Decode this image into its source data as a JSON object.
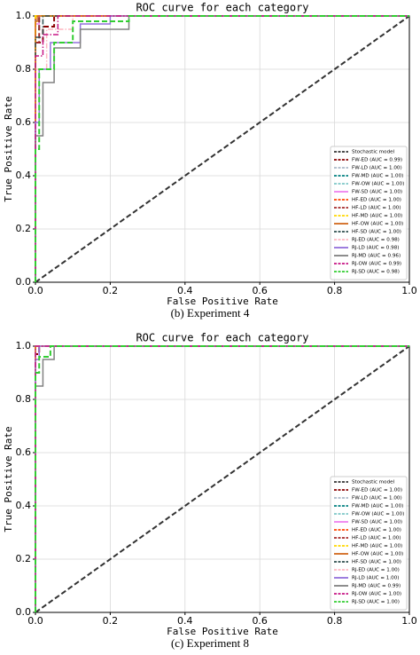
{
  "chart_data": [
    {
      "type": "line",
      "title": "ROC curve for each category",
      "xlabel": "False Positive Rate",
      "ylabel": "True Positive Rate",
      "caption": "(b) Experiment 4",
      "xlim": [
        0,
        1
      ],
      "ylim": [
        0,
        1
      ],
      "xticks": [
        {
          "value": 0,
          "label": "0.0"
        },
        0.2,
        0.4,
        0.6,
        0.8,
        {
          "value": 1,
          "label": "1.0"
        }
      ],
      "yticks": [
        {
          "value": 0,
          "label": "0.0"
        },
        0.2,
        0.4,
        0.6,
        0.8,
        {
          "value": 1,
          "label": "1.0"
        }
      ],
      "grid": true,
      "legend": "lower right",
      "series": [
        {
          "name": "Stochastic model",
          "color": "#333333",
          "dash": "dashed",
          "x": [
            0,
            1
          ],
          "values": [
            0,
            1
          ]
        },
        {
          "name": "FW-ED (AUC = 0.99)",
          "color": "#8b0000",
          "dash": "dashed",
          "x": [
            0,
            0,
            0.02,
            0.02,
            0.05,
            0.05,
            1
          ],
          "values": [
            0,
            0.9,
            0.9,
            0.96,
            0.96,
            1,
            1
          ]
        },
        {
          "name": "FW-LD (AUC = 1.00)",
          "color": "#a9b8c8",
          "dash": "dashdot",
          "x": [
            0,
            0,
            1
          ],
          "values": [
            0,
            1,
            1
          ]
        },
        {
          "name": "FW-MD (AUC = 1.00)",
          "color": "#008080",
          "dash": "dashed",
          "x": [
            0,
            0,
            0.01,
            0.01,
            1
          ],
          "values": [
            0,
            0.95,
            0.95,
            1,
            1
          ]
        },
        {
          "name": "FW-OW (AUC = 1.00)",
          "color": "#7fc8c8",
          "dash": "dashdot",
          "x": [
            0,
            0,
            1
          ],
          "values": [
            0,
            1,
            1
          ]
        },
        {
          "name": "FW-SD (AUC = 1.00)",
          "color": "#ee82ee",
          "dash": "solid",
          "x": [
            0,
            0,
            0.01,
            0.01,
            1
          ],
          "values": [
            0,
            0.97,
            0.97,
            1,
            1
          ]
        },
        {
          "name": "HF-ED (AUC = 1.00)",
          "color": "#ff4500",
          "dash": "dashdot",
          "x": [
            0,
            0,
            1
          ],
          "values": [
            0,
            1,
            1
          ]
        },
        {
          "name": "HF-LD (AUC = 1.00)",
          "color": "#a52a2a",
          "dash": "dashed",
          "x": [
            0,
            0,
            0.01,
            0.01,
            1
          ],
          "values": [
            0,
            0.9,
            0.9,
            1,
            1
          ]
        },
        {
          "name": "HF-MD (AUC = 1.00)",
          "color": "#ffd700",
          "dash": "dashed",
          "x": [
            0,
            0,
            1
          ],
          "values": [
            0,
            1,
            1
          ]
        },
        {
          "name": "HF-OW (AUC = 1.00)",
          "color": "#d2691e",
          "dash": "solid",
          "x": [
            0,
            0,
            0.005,
            0.005,
            1
          ],
          "values": [
            0,
            0.98,
            0.98,
            1,
            1
          ]
        },
        {
          "name": "HF-SD (AUC = 1.00)",
          "color": "#2f4f4f",
          "dash": "dashdot",
          "x": [
            0,
            0,
            0.02,
            0.02,
            1
          ],
          "values": [
            0,
            0.92,
            0.92,
            1,
            1
          ]
        },
        {
          "name": "RJ-ED (AUC = 0.98)",
          "color": "#ffb6c1",
          "dash": "dashdot",
          "x": [
            0,
            0,
            0.03,
            0.03,
            0.1,
            0.1,
            1
          ],
          "values": [
            0,
            0.8,
            0.8,
            0.95,
            0.95,
            1,
            1
          ]
        },
        {
          "name": "RJ-LD (AUC = 0.98)",
          "color": "#9370db",
          "dash": "solid",
          "x": [
            0,
            0,
            0.01,
            0.01,
            0.04,
            0.04,
            0.12,
            0.12,
            0.2,
            0.2,
            1
          ],
          "values": [
            0,
            0.6,
            0.6,
            0.8,
            0.8,
            0.9,
            0.9,
            0.97,
            0.97,
            1,
            1
          ]
        },
        {
          "name": "RJ-MD (AUC = 0.96)",
          "color": "#808080",
          "dash": "solid",
          "x": [
            0,
            0,
            0.02,
            0.02,
            0.05,
            0.05,
            0.12,
            0.12,
            0.25,
            0.25,
            1
          ],
          "values": [
            0,
            0.55,
            0.55,
            0.75,
            0.75,
            0.88,
            0.88,
            0.95,
            0.95,
            1,
            1
          ]
        },
        {
          "name": "RJ-OW (AUC = 0.99)",
          "color": "#c71585",
          "dash": "dashdot",
          "x": [
            0,
            0,
            0.02,
            0.02,
            0.06,
            0.06,
            1
          ],
          "values": [
            0,
            0.85,
            0.85,
            0.93,
            0.93,
            1,
            1
          ]
        },
        {
          "name": "RJ-SD (AUC = 0.98)",
          "color": "#32cd32",
          "dash": "dashed",
          "x": [
            0,
            0,
            0.01,
            0.01,
            0.05,
            0.05,
            0.1,
            0.1,
            0.25,
            0.25,
            1
          ],
          "values": [
            0,
            0.5,
            0.5,
            0.8,
            0.8,
            0.9,
            0.9,
            0.98,
            0.98,
            1,
            1
          ]
        }
      ]
    },
    {
      "type": "line",
      "title": "ROC curve for each category",
      "xlabel": "False Positive Rate",
      "ylabel": "True Positive Rate",
      "caption": "(c) Experiment 8",
      "xlim": [
        0,
        1
      ],
      "ylim": [
        0,
        1
      ],
      "xticks": [
        {
          "value": 0,
          "label": "0.0"
        },
        0.2,
        0.4,
        0.6,
        0.8,
        {
          "value": 1,
          "label": "1.0"
        }
      ],
      "yticks": [
        {
          "value": 0,
          "label": "0.0"
        },
        0.2,
        0.4,
        0.6,
        0.8,
        {
          "value": 1,
          "label": "1.0"
        }
      ],
      "grid": true,
      "legend": "lower right",
      "series": [
        {
          "name": "Stochastic model",
          "color": "#333333",
          "dash": "dashed",
          "x": [
            0,
            1
          ],
          "values": [
            0,
            1
          ]
        },
        {
          "name": "FW-ED (AUC = 1.00)",
          "color": "#8b0000",
          "dash": "dashed",
          "x": [
            0,
            0,
            0.01,
            0.01,
            1
          ],
          "values": [
            0,
            0.97,
            0.97,
            1,
            1
          ]
        },
        {
          "name": "FW-LD (AUC = 1.00)",
          "color": "#a9b8c8",
          "dash": "dashdot",
          "x": [
            0,
            0,
            1
          ],
          "values": [
            0,
            1,
            1
          ]
        },
        {
          "name": "FW-MD (AUC = 1.00)",
          "color": "#008080",
          "dash": "dashed",
          "x": [
            0,
            0,
            1
          ],
          "values": [
            0,
            1,
            1
          ]
        },
        {
          "name": "FW-OW (AUC = 1.00)",
          "color": "#7fc8c8",
          "dash": "dashdot",
          "x": [
            0,
            0,
            1
          ],
          "values": [
            0,
            1,
            1
          ]
        },
        {
          "name": "FW-SD (AUC = 1.00)",
          "color": "#ee82ee",
          "dash": "solid",
          "x": [
            0,
            0,
            1
          ],
          "values": [
            0,
            1,
            1
          ]
        },
        {
          "name": "HF-ED (AUC = 1.00)",
          "color": "#ff4500",
          "dash": "dashdot",
          "x": [
            0,
            0,
            1
          ],
          "values": [
            0,
            1,
            1
          ]
        },
        {
          "name": "HF-LD (AUC = 1.00)",
          "color": "#a52a2a",
          "dash": "dashed",
          "x": [
            0,
            0,
            1
          ],
          "values": [
            0,
            1,
            1
          ]
        },
        {
          "name": "HF-MD (AUC = 1.00)",
          "color": "#ffd700",
          "dash": "dashed",
          "x": [
            0,
            0,
            1
          ],
          "values": [
            0,
            1,
            1
          ]
        },
        {
          "name": "HF-OW (AUC = 1.00)",
          "color": "#d2691e",
          "dash": "solid",
          "x": [
            0,
            0,
            1
          ],
          "values": [
            0,
            1,
            1
          ]
        },
        {
          "name": "HF-SD (AUC = 1.00)",
          "color": "#2f4f4f",
          "dash": "dashdot",
          "x": [
            0,
            0,
            1
          ],
          "values": [
            0,
            1,
            1
          ]
        },
        {
          "name": "RJ-ED (AUC = 1.00)",
          "color": "#ffb6c1",
          "dash": "dashdot",
          "x": [
            0,
            0,
            1
          ],
          "values": [
            0,
            1,
            1
          ]
        },
        {
          "name": "RJ-LD (AUC = 1.00)",
          "color": "#9370db",
          "dash": "solid",
          "x": [
            0,
            0,
            0.01,
            0.01,
            1
          ],
          "values": [
            0,
            0.95,
            0.95,
            1,
            1
          ]
        },
        {
          "name": "RJ-MD (AUC = 0.99)",
          "color": "#808080",
          "dash": "solid",
          "x": [
            0,
            0,
            0.02,
            0.02,
            0.05,
            0.05,
            1
          ],
          "values": [
            0,
            0.85,
            0.85,
            0.95,
            0.95,
            1,
            1
          ]
        },
        {
          "name": "RJ-OW (AUC = 1.00)",
          "color": "#c71585",
          "dash": "dashdot",
          "x": [
            0,
            0,
            1
          ],
          "values": [
            0,
            1,
            1
          ]
        },
        {
          "name": "RJ-SD (AUC = 1.00)",
          "color": "#32cd32",
          "dash": "dashed",
          "x": [
            0,
            0,
            0.01,
            0.01,
            0.04,
            0.04,
            1
          ],
          "values": [
            0,
            0.9,
            0.9,
            0.96,
            0.96,
            1,
            1
          ]
        }
      ]
    }
  ]
}
